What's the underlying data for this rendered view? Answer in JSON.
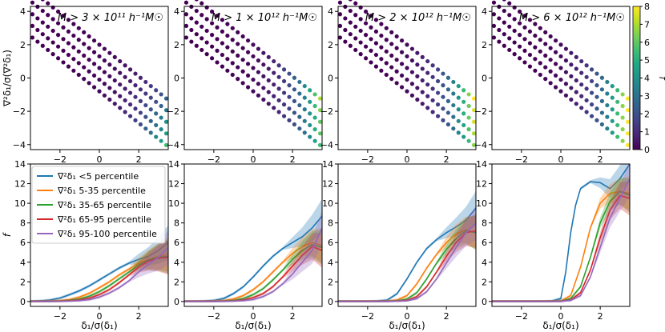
{
  "colorbar": {
    "label": "f",
    "ticks": [
      "0",
      "1",
      "2",
      "3",
      "4",
      "5",
      "6",
      "7",
      "8"
    ],
    "range": [
      0,
      8
    ],
    "colormap": "viridis"
  },
  "top_row_ylabel": "∇²δ₁/σ(∇²δ₁)",
  "bottom_row_ylabel": "f",
  "bottom_row_xlabel": "δ₁/σ(δ₁)",
  "top_xticks": [
    "−2",
    "0",
    "2"
  ],
  "top_yticks": [
    "−4",
    "−2",
    "0",
    "2",
    "4"
  ],
  "bottom_xticks": [
    "−2",
    "0",
    "2"
  ],
  "bottom_yticks": [
    "0",
    "2",
    "4",
    "6",
    "8",
    "10",
    "12",
    "14"
  ],
  "legend": [
    {
      "label": "∇²δ₁ <5 percentile",
      "color": "#1f77b4"
    },
    {
      "label": "∇²δ₁ 5-35 percentile",
      "color": "#ff7f0e"
    },
    {
      "label": "∇²δ₁ 35-65 percentile",
      "color": "#2ca02c"
    },
    {
      "label": "∇²δ₁ 65-95 percentile",
      "color": "#d62728"
    },
    {
      "label": "∇²δ₁ 95-100 percentile",
      "color": "#9467bd"
    }
  ],
  "chart_data": [
    {
      "type": "scatter",
      "panel": "top-1",
      "title": "M > 3 × 10¹¹ h⁻¹M☉",
      "xlim": [
        -3.5,
        3.5
      ],
      "ylim": [
        -4.3,
        4.3
      ],
      "lines": [
        {
          "y_intercept": 2.0,
          "f_end": 2.5
        },
        {
          "y_intercept": 1.3,
          "f_end": 3.0
        },
        {
          "y_intercept": 0.6,
          "f_end": 4.0
        },
        {
          "y_intercept": -0.1,
          "f_end": 4.5
        },
        {
          "y_intercept": -0.8,
          "f_end": 5.5
        }
      ],
      "slope": -0.95
    },
    {
      "type": "scatter",
      "panel": "top-2",
      "title": "M > 1 × 10¹² h⁻¹M☉",
      "xlim": [
        -3.5,
        3.5
      ],
      "ylim": [
        -4.3,
        4.3
      ],
      "lines": [
        {
          "y_intercept": 2.0,
          "f_end": 7.0
        },
        {
          "y_intercept": 1.3,
          "f_end": 6.5
        },
        {
          "y_intercept": 0.6,
          "f_end": 6.0
        },
        {
          "y_intercept": -0.1,
          "f_end": 6.0
        },
        {
          "y_intercept": -0.8,
          "f_end": 5.5
        }
      ],
      "slope": -0.95
    },
    {
      "type": "scatter",
      "panel": "top-3",
      "title": "M > 2 × 10¹² h⁻¹M☉",
      "xlim": [
        -3.5,
        3.5
      ],
      "ylim": [
        -4.3,
        4.3
      ],
      "lines": [
        {
          "y_intercept": 2.0,
          "f_end": 8.0
        },
        {
          "y_intercept": 1.3,
          "f_end": 7.5
        },
        {
          "y_intercept": 0.6,
          "f_end": 7.5
        },
        {
          "y_intercept": -0.1,
          "f_end": 7.0
        },
        {
          "y_intercept": -0.8,
          "f_end": 6.5
        }
      ],
      "slope": -0.95
    },
    {
      "type": "scatter",
      "panel": "top-4",
      "title": "M > 6 × 10¹² h⁻¹M☉",
      "xlim": [
        -3.5,
        3.5
      ],
      "ylim": [
        -4.3,
        4.3
      ],
      "lines": [
        {
          "y_intercept": 2.0,
          "f_end": 8.0
        },
        {
          "y_intercept": 1.3,
          "f_end": 8.0
        },
        {
          "y_intercept": 0.6,
          "f_end": 8.0
        },
        {
          "y_intercept": -0.1,
          "f_end": 8.0
        },
        {
          "y_intercept": -0.8,
          "f_end": 8.0
        }
      ],
      "slope": -0.95
    },
    {
      "type": "line",
      "panel": "bottom-1",
      "xlabel": "δ₁/σ(δ₁)",
      "ylabel": "f",
      "xlim": [
        -3.5,
        3.5
      ],
      "ylim": [
        -0.5,
        14
      ],
      "series": [
        {
          "name": "∇²δ₁ <5 percentile",
          "color": "#1f77b4",
          "x": [
            -3.5,
            -3,
            -2.5,
            -2,
            -1.5,
            -1,
            -0.5,
            0,
            0.5,
            1,
            1.5,
            2,
            2.5,
            3,
            3.5
          ],
          "y": [
            0,
            0.05,
            0.15,
            0.35,
            0.7,
            1.1,
            1.6,
            2.2,
            2.8,
            3.4,
            3.9,
            4.3,
            4.6,
            5.2,
            6.0
          ]
        },
        {
          "name": "∇²δ₁ 5-35 percentile",
          "color": "#ff7f0e",
          "x": [
            -3.5,
            -3,
            -2.5,
            -2,
            -1.5,
            -1,
            -0.5,
            0,
            0.5,
            1,
            1.5,
            2,
            2.5,
            3,
            3.5
          ],
          "y": [
            0,
            0,
            0.02,
            0.08,
            0.2,
            0.45,
            0.85,
            1.4,
            2.0,
            2.7,
            3.3,
            3.9,
            4.3,
            4.6,
            4.8
          ]
        },
        {
          "name": "∇²δ₁ 35-65 percentile",
          "color": "#2ca02c",
          "x": [
            -3.5,
            -3,
            -2.5,
            -2,
            -1.5,
            -1,
            -0.5,
            0,
            0.5,
            1,
            1.5,
            2,
            2.5,
            3,
            3.5
          ],
          "y": [
            0,
            0,
            0,
            0.03,
            0.1,
            0.25,
            0.55,
            1.0,
            1.6,
            2.3,
            3.0,
            3.7,
            4.2,
            4.5,
            4.6
          ]
        },
        {
          "name": "∇²δ₁ 65-95 percentile",
          "color": "#d62728",
          "x": [
            -3.5,
            -3,
            -2.5,
            -2,
            -1.5,
            -1,
            -0.5,
            0,
            0.5,
            1,
            1.5,
            2,
            2.5,
            3,
            3.5
          ],
          "y": [
            0,
            0,
            0,
            0.01,
            0.05,
            0.15,
            0.35,
            0.7,
            1.2,
            1.9,
            2.7,
            3.5,
            4.1,
            4.4,
            4.5
          ]
        },
        {
          "name": "∇²δ₁ 95-100 percentile",
          "color": "#9467bd",
          "x": [
            -3.5,
            -3,
            -2.5,
            -2,
            -1.5,
            -1,
            -0.5,
            0,
            0.5,
            1,
            1.5,
            2,
            2.5,
            3,
            3.5
          ],
          "y": [
            0,
            0,
            0,
            0,
            0.02,
            0.08,
            0.2,
            0.45,
            0.85,
            1.4,
            2.1,
            3.0,
            3.8,
            4.5,
            5.5
          ]
        }
      ]
    },
    {
      "type": "line",
      "panel": "bottom-2",
      "xlabel": "δ₁/σ(δ₁)",
      "xlim": [
        -3.5,
        3.5
      ],
      "ylim": [
        -0.5,
        14
      ],
      "series": [
        {
          "name": "∇²δ₁ <5 percentile",
          "color": "#1f77b4",
          "x": [
            -3.5,
            -3,
            -2.5,
            -2,
            -1.5,
            -1,
            -0.5,
            0,
            0.5,
            1,
            1.5,
            2,
            2.5,
            3,
            3.5
          ],
          "y": [
            0,
            0,
            0.02,
            0.1,
            0.3,
            0.8,
            1.5,
            2.5,
            3.6,
            4.6,
            5.4,
            6.0,
            6.6,
            7.5,
            8.7
          ]
        },
        {
          "name": "∇²δ₁ 5-35 percentile",
          "color": "#ff7f0e",
          "x": [
            -3.5,
            -3,
            -2.5,
            -2,
            -1.5,
            -1,
            -0.5,
            0,
            0.5,
            1,
            1.5,
            2,
            2.5,
            3,
            3.5
          ],
          "y": [
            0,
            0,
            0,
            0.02,
            0.08,
            0.25,
            0.6,
            1.2,
            2.0,
            3.0,
            4.0,
            4.9,
            5.6,
            6.0,
            5.7
          ]
        },
        {
          "name": "∇²δ₁ 35-65 percentile",
          "color": "#2ca02c",
          "x": [
            -3.5,
            -3,
            -2.5,
            -2,
            -1.5,
            -1,
            -0.5,
            0,
            0.5,
            1,
            1.5,
            2,
            2.5,
            3,
            3.5
          ],
          "y": [
            0,
            0,
            0,
            0,
            0.03,
            0.1,
            0.3,
            0.7,
            1.3,
            2.2,
            3.2,
            4.3,
            5.2,
            5.8,
            5.5
          ]
        },
        {
          "name": "∇²δ₁ 65-95 percentile",
          "color": "#d62728",
          "x": [
            -3.5,
            -3,
            -2.5,
            -2,
            -1.5,
            -1,
            -0.5,
            0,
            0.5,
            1,
            1.5,
            2,
            2.5,
            3,
            3.5
          ],
          "y": [
            0,
            0,
            0,
            0,
            0.01,
            0.04,
            0.15,
            0.4,
            0.8,
            1.5,
            2.5,
            3.6,
            4.7,
            5.6,
            5.2
          ]
        },
        {
          "name": "∇²δ₁ 95-100 percentile",
          "color": "#9467bd",
          "x": [
            -3.5,
            -3,
            -2.5,
            -2,
            -1.5,
            -1,
            -0.5,
            0,
            0.5,
            1,
            1.5,
            2,
            2.5,
            3,
            3.5
          ],
          "y": [
            0,
            0,
            0,
            0,
            0,
            0.02,
            0.07,
            0.2,
            0.5,
            1.0,
            1.8,
            2.8,
            4.0,
            5.2,
            7.5
          ]
        }
      ]
    },
    {
      "type": "line",
      "panel": "bottom-3",
      "xlabel": "δ₁/σ(δ₁)",
      "xlim": [
        -3.5,
        3.5
      ],
      "ylim": [
        -0.5,
        14
      ],
      "series": [
        {
          "name": "∇²δ₁ <5 percentile",
          "color": "#1f77b4",
          "x": [
            -3.5,
            -3,
            -2.5,
            -2,
            -1.5,
            -1,
            -0.5,
            0,
            0.5,
            1,
            1.5,
            2,
            2.5,
            3,
            3.5
          ],
          "y": [
            0,
            0,
            0,
            0,
            0.02,
            0.15,
            0.8,
            2.3,
            4.0,
            5.4,
            6.3,
            7.0,
            7.6,
            8.3,
            9.5
          ]
        },
        {
          "name": "∇²δ₁ 5-35 percentile",
          "color": "#ff7f0e",
          "x": [
            -3.5,
            -3,
            -2.5,
            -2,
            -1.5,
            -1,
            -0.5,
            0,
            0.5,
            1,
            1.5,
            2,
            2.5,
            3,
            3.5
          ],
          "y": [
            0,
            0,
            0,
            0,
            0,
            0.03,
            0.15,
            0.6,
            1.8,
            3.4,
            4.8,
            6.0,
            6.9,
            7.3,
            7.0
          ]
        },
        {
          "name": "∇²δ₁ 35-65 percentile",
          "color": "#2ca02c",
          "x": [
            -3.5,
            -3,
            -2.5,
            -2,
            -1.5,
            -1,
            -0.5,
            0,
            0.5,
            1,
            1.5,
            2,
            2.5,
            3,
            3.5
          ],
          "y": [
            0,
            0,
            0,
            0,
            0,
            0.01,
            0.05,
            0.25,
            0.9,
            2.3,
            3.9,
            5.3,
            6.4,
            7.2,
            7.0
          ]
        },
        {
          "name": "∇²δ₁ 65-95 percentile",
          "color": "#d62728",
          "x": [
            -3.5,
            -3,
            -2.5,
            -2,
            -1.5,
            -1,
            -0.5,
            0,
            0.5,
            1,
            1.5,
            2,
            2.5,
            3,
            3.5
          ],
          "y": [
            0,
            0,
            0,
            0,
            0,
            0,
            0.02,
            0.1,
            0.5,
            1.5,
            3.0,
            4.6,
            6.0,
            7.0,
            7.2
          ]
        },
        {
          "name": "∇²δ₁ 95-100 percentile",
          "color": "#9467bd",
          "x": [
            -3.5,
            -3,
            -2.5,
            -2,
            -1.5,
            -1,
            -0.5,
            0,
            0.5,
            1,
            1.5,
            2,
            2.5,
            3,
            3.5
          ],
          "y": [
            0,
            0,
            0,
            0,
            0,
            0,
            0.01,
            0.05,
            0.3,
            1.0,
            2.3,
            3.9,
            5.5,
            7.0,
            8.0
          ]
        }
      ]
    },
    {
      "type": "line",
      "panel": "bottom-4",
      "xlabel": "δ₁/σ(δ₁)",
      "xlim": [
        -3.5,
        3.5
      ],
      "ylim": [
        -0.5,
        14
      ],
      "series": [
        {
          "name": "∇²δ₁ <5 percentile",
          "color": "#1f77b4",
          "x": [
            -3.5,
            -3,
            -2.5,
            -2,
            -1.5,
            -1,
            -0.5,
            0,
            0.25,
            0.5,
            0.75,
            1,
            1.5,
            2,
            2.5,
            3,
            3.5
          ],
          "y": [
            0,
            0,
            0,
            0,
            0,
            0,
            0.02,
            0.3,
            3.0,
            7.0,
            9.8,
            11.5,
            12.2,
            12.1,
            11.5,
            12.5,
            14.0
          ]
        },
        {
          "name": "∇²δ₁ 5-35 percentile",
          "color": "#ff7f0e",
          "x": [
            -3.5,
            -3,
            -2.5,
            -2,
            -1.5,
            -1,
            -0.5,
            0,
            0.5,
            1,
            1.5,
            2,
            2.5,
            3,
            3.5
          ],
          "y": [
            0,
            0,
            0,
            0,
            0,
            0,
            0,
            0.05,
            0.6,
            3.5,
            7.5,
            10.0,
            11.0,
            11.2,
            11.0
          ]
        },
        {
          "name": "∇²δ₁ 35-65 percentile",
          "color": "#2ca02c",
          "x": [
            -3.5,
            -3,
            -2.5,
            -2,
            -1.5,
            -1,
            -0.5,
            0,
            0.5,
            1,
            1.5,
            2,
            2.5,
            3,
            3.5
          ],
          "y": [
            0,
            0,
            0,
            0,
            0,
            0,
            0,
            0.02,
            0.3,
            1.5,
            4.5,
            8.0,
            10.2,
            11.2,
            10.8
          ]
        },
        {
          "name": "∇²δ₁ 65-95 percentile",
          "color": "#d62728",
          "x": [
            -3.5,
            -3,
            -2.5,
            -2,
            -1.5,
            -1,
            -0.5,
            0,
            0.5,
            1,
            1.5,
            2,
            2.5,
            3,
            3.5
          ],
          "y": [
            0,
            0,
            0,
            0,
            0,
            0,
            0,
            0,
            0.15,
            0.9,
            3.2,
            6.5,
            9.3,
            10.8,
            10.5
          ]
        },
        {
          "name": "∇²δ₁ 95-100 percentile",
          "color": "#9467bd",
          "x": [
            -3.5,
            -3,
            -2.5,
            -2,
            -1.5,
            -1,
            -0.5,
            0,
            0.5,
            1,
            1.5,
            2,
            2.5,
            3,
            3.5
          ],
          "y": [
            0,
            0,
            0,
            0,
            0,
            0,
            0,
            0,
            0.1,
            0.6,
            2.5,
            5.5,
            8.5,
            10.5,
            12.5
          ]
        }
      ]
    }
  ]
}
